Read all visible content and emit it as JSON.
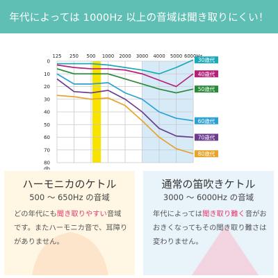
{
  "banner": {
    "title": "年代によっては 1000Hz 以上の音域は聞き取りにくい！"
  },
  "chart_data": {
    "type": "line",
    "x": [
      "125",
      "250",
      "500",
      "1000",
      "2000",
      "3000",
      "4000",
      "5000",
      "6000Hz"
    ],
    "y_ticks": [
      "0",
      "10",
      "20",
      "30",
      "40",
      "50",
      "60",
      "70",
      "80"
    ],
    "ylabel": "db",
    "ylim": [
      0,
      80
    ],
    "y_inverted": true,
    "highlight_band": {
      "from": "500",
      "to": "1000",
      "color": "#f7e200"
    },
    "highlight_region": {
      "from": "3000",
      "to": "6000Hz",
      "color": "#d6ebf7"
    },
    "series": [
      {
        "name": "30歳代",
        "color": "#1aa9b8",
        "values": [
          2,
          2,
          2,
          3,
          5,
          7,
          10,
          5,
          -1
        ]
      },
      {
        "name": "40歳代",
        "color": "#b5207a",
        "values": [
          3,
          5,
          6,
          6,
          7,
          10,
          15,
          20,
          10
        ]
      },
      {
        "name": "50歳代",
        "color": "#2a8a3a",
        "values": [
          6,
          10,
          10,
          10,
          14,
          18,
          22,
          25,
          22
        ]
      },
      {
        "name": "60歳代",
        "color": "#2aa1d6",
        "values": [
          10,
          18,
          18,
          17,
          25,
          30,
          40,
          45,
          47
        ]
      },
      {
        "name": "70歳代",
        "color": "#6b3d8e",
        "values": [
          14,
          24,
          25,
          23,
          30,
          40,
          53,
          59,
          60
        ]
      },
      {
        "name": "80歳代",
        "color": "#e8a32a",
        "values": [
          27,
          28,
          30,
          29,
          35,
          47,
          60,
          69,
          73
        ]
      }
    ]
  },
  "panels": {
    "left": {
      "title": "ハーモニカのケトル",
      "range_label": "500 〜 650Hz の音域",
      "body_pre": "どの年代にも",
      "body_hl": "聞き取りやすい",
      "body_post": "音域です。またハーモニカ音で、耳障りがありません。",
      "accent_color": "#f5b04a"
    },
    "right": {
      "title": "通常の笛吹きケトル",
      "range_label": "3000 〜 6000Hz の音域",
      "body_pre": "年代によっては",
      "body_hl": "聞き取り難く",
      "body_post": "音がおおきくなってもその聞き取り難さは変わりません。",
      "accent_color": "#e8386b"
    }
  }
}
